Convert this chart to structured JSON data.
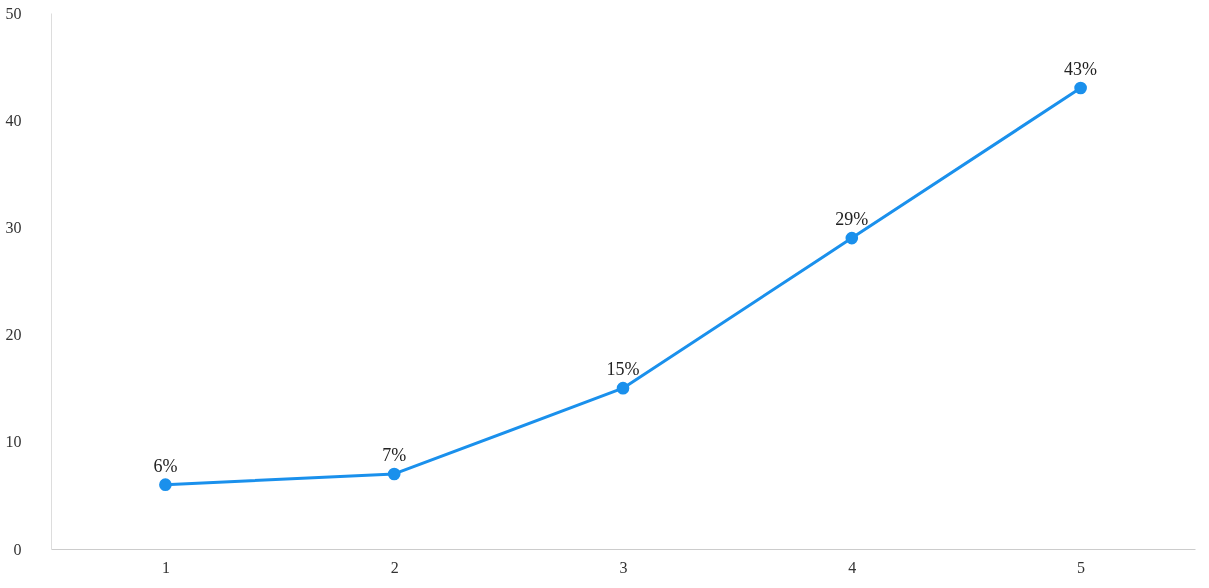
{
  "chart_data": {
    "type": "line",
    "categories": [
      "1",
      "2",
      "3",
      "4",
      "5"
    ],
    "series": [
      {
        "color": "#1a90ec",
        "values": [
          6,
          7,
          15,
          29,
          43
        ],
        "value_labels": [
          "6%",
          "7%",
          "15%",
          "29%",
          "43%"
        ]
      }
    ],
    "ylim": [
      0,
      50
    ],
    "yticks": [
      0,
      10,
      20,
      30,
      40,
      50
    ],
    "grid": false,
    "marker": "circle",
    "line_style": "solid"
  }
}
